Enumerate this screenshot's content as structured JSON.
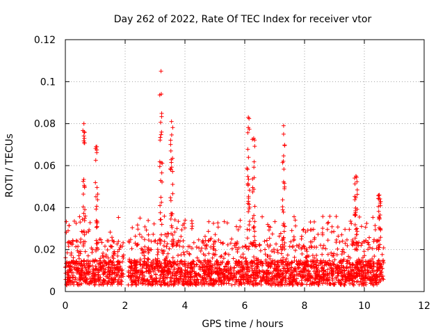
{
  "chart_data": {
    "type": "scatter",
    "title": "Day 262 of 2022, Rate Of TEC Index for receiver vtor",
    "xlabel": "GPS time / hours",
    "ylabel": "ROTI / TECUs",
    "xlim": [
      0,
      12
    ],
    "ylim": [
      0,
      0.12
    ],
    "x_ticks": [
      "0",
      "2",
      "4",
      "6",
      "8",
      "10",
      "12"
    ],
    "y_ticks": [
      "0",
      "0.02",
      "0.04",
      "0.06",
      "0.08",
      "0.1",
      "0.12"
    ],
    "grid": true,
    "marker": "+",
    "series_color": "#ff0000",
    "data_coverage_hours": [
      0.0,
      10.65
    ],
    "gap_hours": [
      1.95,
      2.1
    ],
    "typical_range": [
      0.003,
      0.02
    ],
    "peaks": [
      {
        "x": 0.62,
        "y": 0.08
      },
      {
        "x": 1.05,
        "y": 0.069
      },
      {
        "x": 3.2,
        "y": 0.105
      },
      {
        "x": 3.55,
        "y": 0.081
      },
      {
        "x": 6.12,
        "y": 0.083
      },
      {
        "x": 6.3,
        "y": 0.073
      },
      {
        "x": 7.3,
        "y": 0.079
      },
      {
        "x": 9.72,
        "y": 0.055
      },
      {
        "x": 10.5,
        "y": 0.046
      }
    ]
  }
}
